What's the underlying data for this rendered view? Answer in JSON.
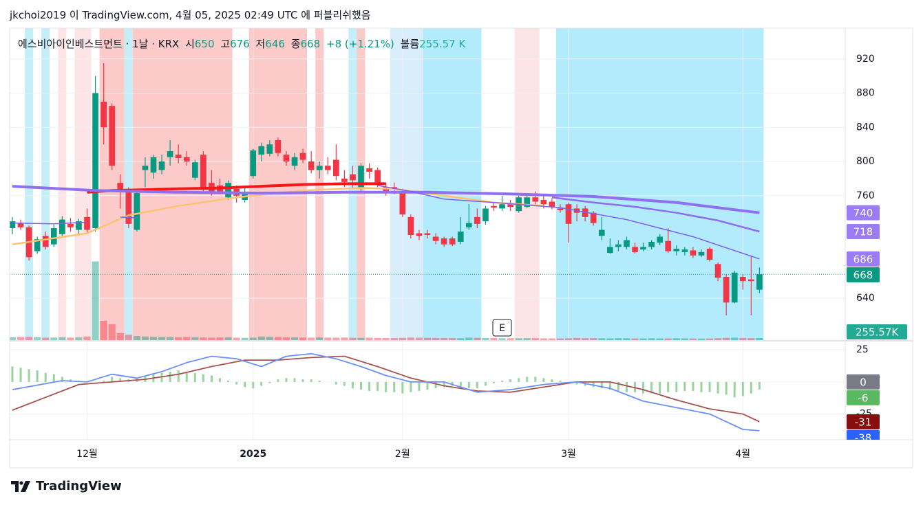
{
  "header": {
    "title": "jkchoi2019 이 TradingView.com, 4월 05, 2025 02:49 UTC 에 퍼블리쉬했음"
  },
  "footer": {
    "brand": "TradingView"
  },
  "chart_data": [
    {
      "type": "candlestick",
      "legend": {
        "symbol": "에스비아이인베스트먼트 · 1날 · KRX",
        "open_label": "시",
        "high_label": "고",
        "low_label": "저",
        "close_label": "종",
        "change": "+8 (+1.21%)",
        "volume_label": "볼륨"
      },
      "earnings_marker": "E",
      "open": [
        722,
        728,
        723,
        695,
        713,
        703,
        715,
        727,
        720,
        735,
        722,
        870,
        865,
        775,
        767,
        720,
        790,
        787,
        790,
        805,
        808,
        805,
        781,
        808,
        775,
        772,
        758,
        768,
        755,
        783,
        808,
        809,
        825,
        808,
        795,
        810,
        800,
        790,
        795,
        802,
        780,
        785,
        770,
        792,
        790,
        770,
        770,
        765,
        735,
        716,
        716,
        712,
        710,
        710,
        706,
        723,
        735,
        730,
        748,
        745,
        750,
        742,
        747,
        758,
        755,
        753,
        745,
        750,
        745,
        745,
        740,
        713,
        693,
        700,
        700,
        700,
        697,
        700,
        705,
        707,
        695,
        694,
        696,
        690,
        698,
        680,
        665,
        635,
        665,
        662,
        650
      ],
      "high": [
        735,
        732,
        725,
        712,
        718,
        726,
        736,
        734,
        733,
        745,
        900,
        915,
        868,
        785,
        770,
        765,
        805,
        808,
        808,
        825,
        820,
        812,
        802,
        812,
        790,
        780,
        778,
        772,
        770,
        815,
        822,
        825,
        828,
        812,
        810,
        815,
        812,
        800,
        805,
        820,
        790,
        795,
        798,
        798,
        793,
        775,
        775,
        768,
        738,
        720,
        720,
        716,
        712,
        712,
        735,
        750,
        745,
        748,
        752,
        760,
        755,
        760,
        762,
        765,
        760,
        757,
        750,
        752,
        750,
        748,
        742,
        735,
        710,
        708,
        712,
        705,
        705,
        708,
        715,
        722,
        702,
        700,
        700,
        697,
        700,
        682,
        668,
        672,
        668,
        690,
        676
      ],
      "low": [
        715,
        720,
        684,
        692,
        697,
        700,
        712,
        718,
        715,
        716,
        718,
        820,
        790,
        745,
        722,
        718,
        770,
        780,
        785,
        795,
        798,
        795,
        778,
        765,
        760,
        762,
        755,
        752,
        752,
        780,
        800,
        806,
        806,
        795,
        790,
        798,
        786,
        780,
        785,
        778,
        770,
        768,
        765,
        780,
        770,
        760,
        762,
        735,
        710,
        708,
        710,
        703,
        700,
        701,
        703,
        720,
        722,
        726,
        742,
        742,
        742,
        740,
        745,
        750,
        745,
        744,
        740,
        705,
        730,
        730,
        725,
        708,
        692,
        695,
        697,
        692,
        695,
        697,
        702,
        693,
        690,
        690,
        687,
        688,
        683,
        660,
        620,
        634,
        650,
        620,
        646
      ],
      "close": [
        730,
        723,
        688,
        709,
        700,
        722,
        732,
        723,
        730,
        720,
        880,
        840,
        795,
        765,
        727,
        763,
        795,
        805,
        800,
        812,
        804,
        800,
        799,
        767,
        765,
        765,
        775,
        760,
        762,
        813,
        818,
        820,
        810,
        800,
        805,
        802,
        790,
        795,
        790,
        783,
        776,
        778,
        795,
        788,
        773,
        765,
        768,
        738,
        714,
        713,
        714,
        707,
        703,
        703,
        718,
        728,
        727,
        745,
        746,
        750,
        747,
        758,
        758,
        753,
        750,
        747,
        743,
        727,
        740,
        735,
        728,
        720,
        700,
        703,
        708,
        694,
        700,
        706,
        712,
        695,
        698,
        697,
        690,
        694,
        685,
        664,
        635,
        670,
        660,
        660,
        668
      ],
      "up_color": "#089981",
      "down_color": "#f23645",
      "xlim": [
        -0.33,
        100.33
      ],
      "xticks": [
        {
          "value": 9,
          "label": "12월"
        },
        {
          "value": 29,
          "label": "2025"
        },
        {
          "value": 47,
          "label": "2월"
        },
        {
          "value": 67,
          "label": "3월"
        },
        {
          "value": 88,
          "label": "4월"
        }
      ],
      "ylim": [
        591,
        956
      ],
      "yticks": [
        640,
        760,
        800,
        840,
        880,
        920
      ],
      "grid": true,
      "bands": [
        {
          "from": 2,
          "to": 2,
          "color": "#c6eef9"
        },
        {
          "from": 4,
          "to": 4,
          "color": "#c6eef9"
        },
        {
          "from": 6,
          "to": 6,
          "color": "#fde4e6"
        },
        {
          "from": 8,
          "to": 9,
          "color": "#fde4e6"
        },
        {
          "from": 11,
          "to": 13,
          "color": "#fdcaca"
        },
        {
          "from": 14,
          "to": 14,
          "color": "#c6eef9"
        },
        {
          "from": 15,
          "to": 26,
          "color": "#fdcaca"
        },
        {
          "from": 29,
          "to": 35,
          "color": "#fdcaca"
        },
        {
          "from": 37,
          "to": 37,
          "color": "#fdcaca"
        },
        {
          "from": 41,
          "to": 41,
          "color": "#c6eef9"
        },
        {
          "from": 42,
          "to": 42,
          "color": "#fdcaca"
        },
        {
          "from": 46,
          "to": 49,
          "color": "#d9eefb"
        },
        {
          "from": 50,
          "to": 56,
          "color": "#b2ebfb"
        },
        {
          "from": 61,
          "to": 63,
          "color": "#fde4e6"
        },
        {
          "from": 66,
          "to": 90,
          "color": "#b2ebfb"
        }
      ],
      "lines": [
        {
          "color": "#ffc26e",
          "width": 2.5,
          "x": [
            0,
            9,
            14,
            20,
            27,
            35,
            42,
            46,
            52,
            58,
            64
          ],
          "values": [
            703,
            716,
            737,
            748,
            758,
            766,
            769,
            768,
            760,
            752,
            748
          ]
        },
        {
          "color": "#f21818",
          "width": 4,
          "x": [
            9,
            12,
            16,
            20,
            25,
            30,
            35,
            40,
            45
          ],
          "values": [
            764,
            766,
            767,
            768,
            769,
            771,
            773,
            774,
            774
          ]
        },
        {
          "color": "#8f70f0",
          "width": 4,
          "badge": true,
          "x": [
            0,
            10,
            20,
            30,
            40,
            50,
            60,
            70,
            80,
            90
          ],
          "values": [
            771,
            766,
            764,
            763,
            764,
            764,
            762,
            759,
            752,
            740
          ]
        },
        {
          "color": "#8c6cf0",
          "width": 2.5,
          "badge": true,
          "x": [
            65,
            70,
            75,
            80,
            85,
            90
          ],
          "values": [
            758,
            752,
            747,
            740,
            731,
            718
          ]
        },
        {
          "color": "#7e5ff0",
          "width": 1.5,
          "badge": true,
          "x": [
            0,
            5,
            9,
            10,
            13,
            15,
            16,
            44,
            48,
            52,
            58,
            66,
            74,
            82,
            90
          ],
          "values": [
            728,
            727,
            729,
            null,
            735,
            734,
            null,
            772,
            765,
            756,
            752,
            746,
            732,
            712,
            686
          ]
        }
      ]
    },
    {
      "type": "bar",
      "values": [
        350,
        400,
        420,
        380,
        300,
        320,
        360,
        310,
        330,
        450,
        9700,
        2380,
        1960,
        850,
        680,
        500,
        450,
        420,
        400,
        380,
        360,
        380,
        350,
        330,
        300,
        320,
        340,
        300,
        280,
        300,
        450,
        420,
        380,
        350,
        340,
        320,
        300,
        330,
        310,
        300,
        320,
        290,
        280,
        300,
        270,
        260,
        250,
        280,
        320,
        300,
        280,
        260,
        250,
        240,
        230,
        300,
        280,
        260,
        250,
        240,
        230,
        220,
        240,
        230,
        220,
        210,
        200,
        220,
        260,
        230,
        240,
        220,
        210,
        230,
        220,
        210,
        200,
        220,
        210,
        200,
        220,
        210,
        200,
        190,
        200,
        230,
        280,
        300,
        260,
        240,
        255.57
      ],
      "last_value_label": "255.57 K",
      "last_axis_label": "255.57K",
      "ylim": [
        0,
        20000
      ]
    },
    {
      "type": "line",
      "ylim": [
        -45,
        31.5
      ],
      "yticks": [
        25,
        0,
        -25
      ],
      "histogram": {
        "color": "#9bd39f",
        "badge_color": "#5cb860",
        "values": [
          12,
          11,
          10,
          9,
          7,
          6,
          4,
          2,
          1,
          0,
          0,
          1,
          4,
          3,
          2,
          3,
          5,
          6,
          7,
          8,
          9,
          8,
          7,
          6,
          5,
          3,
          1,
          -2,
          -4,
          -5,
          -3,
          -1,
          2,
          3,
          3,
          2,
          2,
          1,
          0,
          -2,
          -3,
          -5,
          -6,
          -7,
          -7,
          -8,
          -8,
          -9,
          -8,
          -7,
          -6,
          -5,
          -4,
          -3,
          -4,
          -5,
          -5,
          -3,
          -1,
          1,
          2,
          3,
          4,
          4,
          3,
          2,
          1,
          -1,
          -2,
          -3,
          -4,
          -5,
          -6,
          -7,
          -8,
          -8,
          -9,
          -9,
          -9,
          -8,
          -8,
          -7,
          -7,
          -8,
          -8,
          -9,
          -10,
          -12,
          -11,
          -9,
          -6
        ]
      },
      "series": [
        {
          "color": "#a5524d",
          "badge_color": "#880e0e",
          "x": [
            0,
            4,
            8,
            12,
            16,
            20,
            24,
            28,
            32,
            36,
            40,
            44,
            48,
            52,
            56,
            60,
            64,
            68,
            72,
            76,
            80,
            84,
            88,
            90
          ],
          "values": [
            -22,
            -12,
            -2,
            0,
            2,
            6,
            12,
            17,
            17,
            19,
            20,
            12,
            3,
            -3,
            -7,
            -8,
            -4,
            0,
            0,
            -6,
            -14,
            -21,
            -25,
            -31
          ]
        },
        {
          "color": "#6c8ff5",
          "badge_color": "#2962ff",
          "x": [
            0,
            6,
            9,
            12,
            15,
            18,
            21,
            24,
            27,
            30,
            33,
            36,
            39,
            42,
            45,
            48,
            52,
            56,
            60,
            64,
            68,
            72,
            76,
            80,
            84,
            88,
            90
          ],
          "values": [
            -6,
            1,
            0,
            6,
            3,
            8,
            15,
            20,
            18,
            12,
            20,
            22,
            18,
            12,
            5,
            0,
            0,
            -8,
            -6,
            -2,
            0,
            -5,
            -15,
            -20,
            -25,
            -37,
            -38
          ]
        }
      ]
    }
  ]
}
